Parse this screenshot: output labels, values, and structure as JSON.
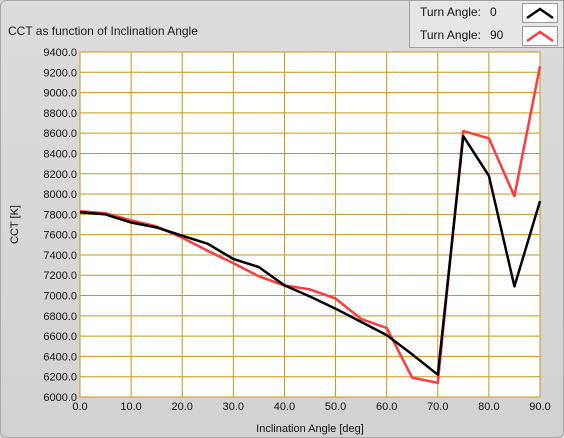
{
  "chart_data": {
    "type": "line",
    "title": "CCT as function of Inclination Angle",
    "xlabel": "Inclination Angle [deg]",
    "ylabel": "CCT [K]",
    "xlim": [
      0,
      90
    ],
    "ylim": [
      6000,
      9400
    ],
    "xticks": [
      0,
      10,
      20,
      30,
      40,
      50,
      60,
      70,
      80,
      90
    ],
    "xtick_labels": [
      "0.0",
      "10.0",
      "20.0",
      "30.0",
      "40.0",
      "50.0",
      "60.0",
      "70.0",
      "80.0",
      "90.0"
    ],
    "yticks": [
      6000,
      6200,
      6400,
      6600,
      6800,
      7000,
      7200,
      7400,
      7600,
      7800,
      8000,
      8200,
      8400,
      8600,
      8800,
      9000,
      9200,
      9400
    ],
    "ytick_labels": [
      "6000.0",
      "6200.0",
      "6400.0",
      "6600.0",
      "6800.0",
      "7000.0",
      "7200.0",
      "7400.0",
      "7600.0",
      "7800.0",
      "8000.0",
      "8200.0",
      "8400.0",
      "8600.0",
      "8800.0",
      "9000.0",
      "9200.0",
      "9400.0"
    ],
    "grid": true,
    "legend_position": "top-right",
    "x": [
      0,
      5,
      10,
      15,
      20,
      25,
      30,
      35,
      40,
      45,
      50,
      55,
      60,
      65,
      70,
      75,
      80,
      85,
      90
    ],
    "series": [
      {
        "legend_label": "Turn Angle:",
        "legend_value": "0",
        "color": "#000000",
        "values": [
          7820,
          7800,
          7720,
          7670,
          7590,
          7510,
          7360,
          7280,
          7100,
          6990,
          6870,
          6740,
          6610,
          6420,
          6220,
          8570,
          8180,
          7090,
          7930
        ]
      },
      {
        "legend_label": "Turn Angle:",
        "legend_value": "90",
        "color": "#ff3b3b",
        "values": [
          7830,
          7810,
          7740,
          7680,
          7570,
          7440,
          7320,
          7190,
          7100,
          7060,
          6970,
          6770,
          6680,
          6190,
          6140,
          8620,
          8550,
          7980,
          9260
        ]
      }
    ]
  },
  "colors": {
    "plot_background": "#ffffff",
    "grid": "#c8961e"
  }
}
